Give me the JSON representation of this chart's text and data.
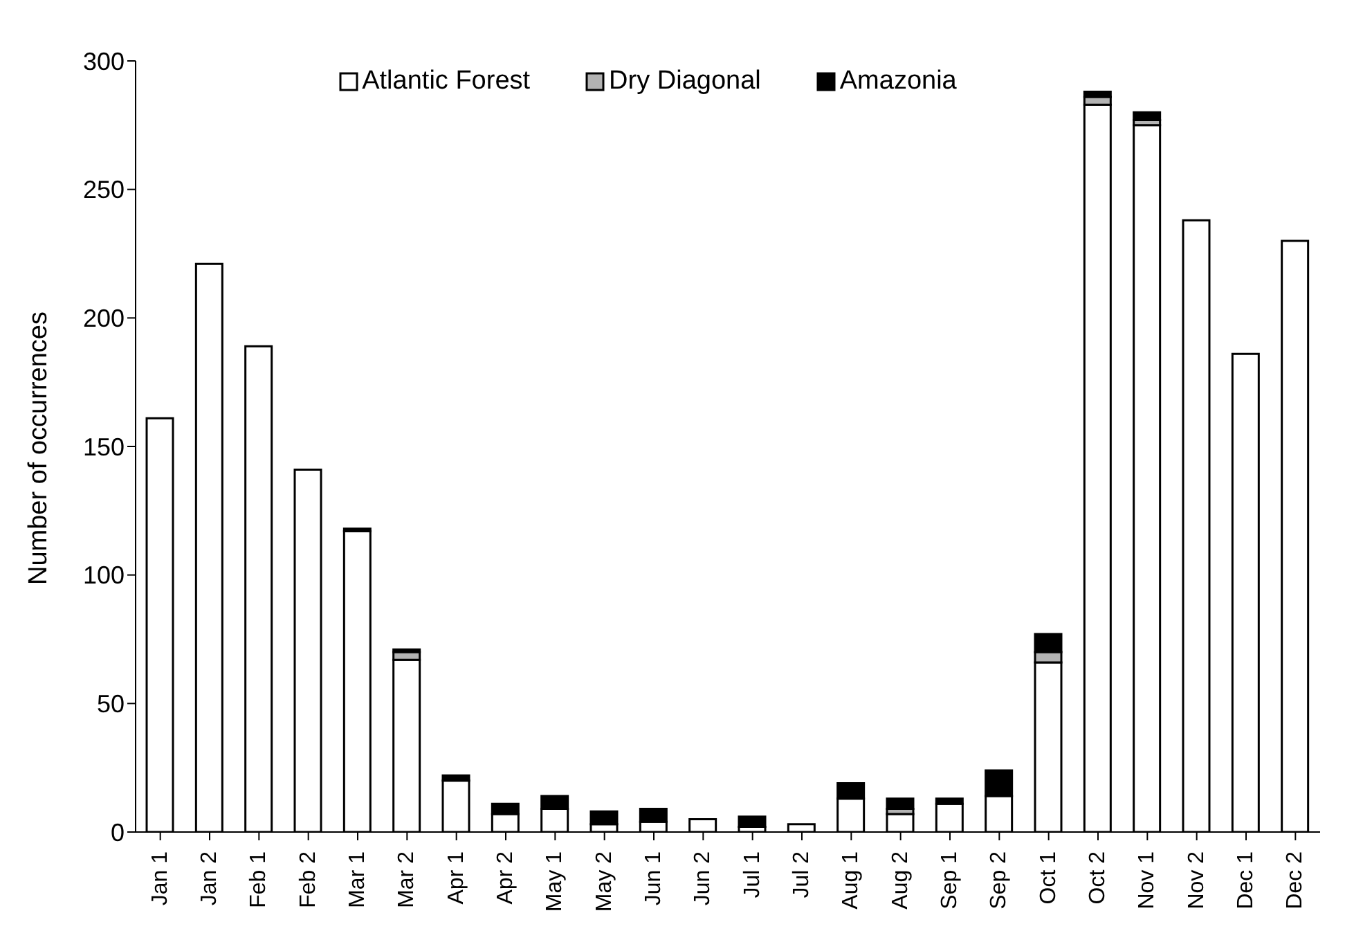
{
  "chart_data": {
    "type": "bar",
    "stacked": true,
    "ylabel": "Number of occurrences",
    "categories": [
      "Jan 1",
      "Jan 2",
      "Feb 1",
      "Feb 2",
      "Mar 1",
      "Mar 2",
      "Apr 1",
      "Apr 2",
      "May 1",
      "May 2",
      "Jun 1",
      "Jun 2",
      "Jul 1",
      "Jul 2",
      "Aug 1",
      "Aug 2",
      "Sep 1",
      "Sep 2",
      "Oct 1",
      "Oct 2",
      "Nov 1",
      "Nov 2",
      "Dec 1",
      "Dec 2"
    ],
    "series": [
      {
        "name": "Atlantic Forest",
        "color": "#ffffff",
        "values": [
          161,
          221,
          189,
          141,
          117,
          67,
          20,
          7,
          9,
          3,
          4,
          5,
          2,
          3,
          13,
          7,
          11,
          14,
          66,
          283,
          275,
          238,
          186,
          230
        ]
      },
      {
        "name": "Dry Diagonal",
        "color": "#b3b3b3",
        "values": [
          0,
          0,
          0,
          0,
          0,
          3,
          0,
          0,
          0,
          0,
          0,
          0,
          0,
          0,
          0,
          2,
          0,
          0,
          4,
          3,
          2,
          0,
          0,
          0
        ]
      },
      {
        "name": "Amazonia",
        "color": "#000000",
        "values": [
          0,
          0,
          0,
          0,
          1,
          1,
          2,
          4,
          5,
          5,
          5,
          0,
          4,
          0,
          6,
          4,
          2,
          10,
          7,
          2,
          3,
          0,
          0,
          0
        ]
      }
    ],
    "ylim": [
      0,
      300
    ],
    "yticks": [
      0,
      50,
      100,
      150,
      200,
      250,
      300
    ],
    "grid": false,
    "legend": "top"
  }
}
